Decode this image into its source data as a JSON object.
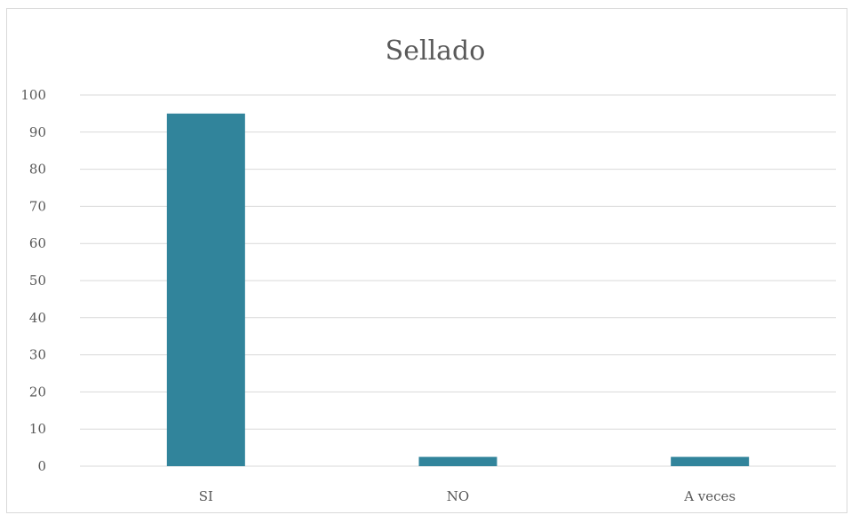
{
  "chart_data": {
    "type": "bar",
    "title": "Sellado",
    "xlabel": "",
    "ylabel": "",
    "categories": [
      "SI",
      "NO",
      "A veces"
    ],
    "values": [
      95,
      2.5,
      2.5
    ],
    "ylim": [
      0,
      100
    ],
    "yticks": [
      0,
      10,
      20,
      30,
      40,
      50,
      60,
      70,
      80,
      90,
      100
    ],
    "grid": true,
    "legend": "none",
    "colors": {
      "bar": "#31849b",
      "grid": "#d9d9d9",
      "text": "#595959"
    }
  }
}
